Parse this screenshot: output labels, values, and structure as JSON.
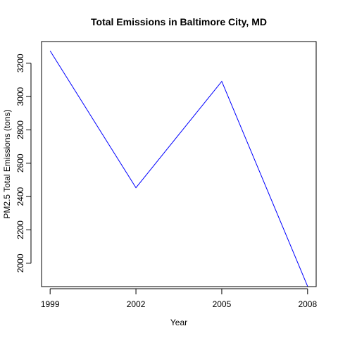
{
  "chart_data": {
    "type": "line",
    "title": "Total Emissions in Baltimore City, MD",
    "xlabel": "Year",
    "ylabel": "PM2.5 Total Emissions (tons)",
    "x": [
      1999,
      2002,
      2005,
      2008
    ],
    "x_ticks": [
      "1999",
      "2002",
      "2005",
      "2008"
    ],
    "y_ticks": [
      "2000",
      "2200",
      "2400",
      "2600",
      "2800",
      "3000",
      "3200"
    ],
    "xlim": [
      1998.7,
      2008.3
    ],
    "ylim": [
      1860,
      3330
    ],
    "grid": false,
    "series": [
      {
        "color": "#0000ff",
        "values": [
          3274,
          2453,
          3091,
          1862
        ]
      }
    ]
  }
}
